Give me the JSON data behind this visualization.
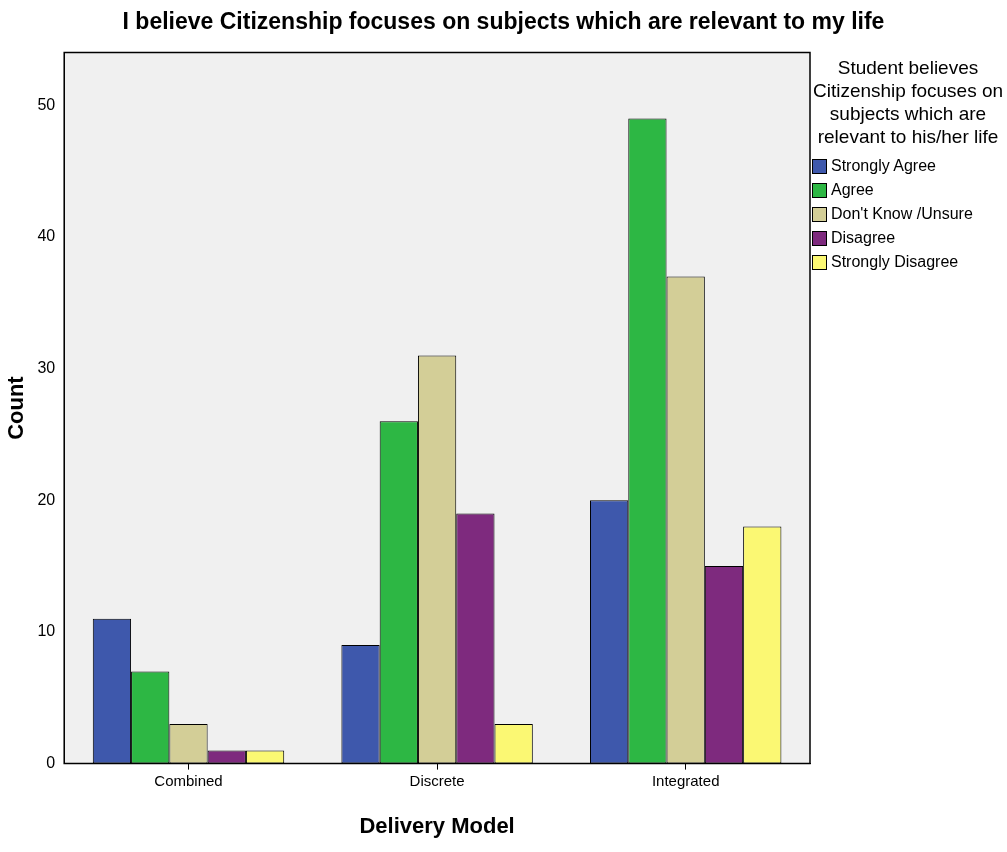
{
  "chart_data": {
    "type": "bar",
    "title": "I believe Citizenship focuses on subjects which are relevant to my life",
    "xlabel": "Delivery Model",
    "ylabel": "Count",
    "legend_title": "Student believes Citizenship focuses on subjects which are relevant to his/her life",
    "legend": "top right",
    "grid": false,
    "categories": [
      "Combined",
      "Discrete",
      "Integrated"
    ],
    "series": [
      {
        "name": "Strongly Agree",
        "color": "#3e58ac",
        "values": [
          11,
          9,
          20
        ]
      },
      {
        "name": "Agree",
        "color": "#2db744",
        "values": [
          7,
          26,
          49
        ]
      },
      {
        "name": "Don't Know /Unsure",
        "color": "#d3ce97",
        "values": [
          3,
          31,
          37
        ]
      },
      {
        "name": "Disagree",
        "color": "#7e2a7e",
        "values": [
          1,
          19,
          15
        ]
      },
      {
        "name": "Strongly Disagree",
        "color": "#fbf873",
        "values": [
          1,
          3,
          18
        ]
      }
    ],
    "ylim": [
      0,
      54
    ],
    "yticks": [
      0,
      10,
      20,
      30,
      40,
      50
    ]
  }
}
